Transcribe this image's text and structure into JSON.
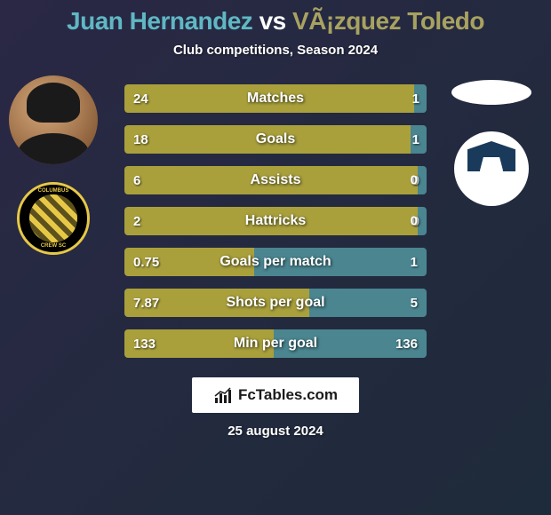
{
  "title": {
    "player1_name": "Juan Hernandez",
    "vs_text": "vs",
    "player2_name": "VÃ¡zquez Toledo",
    "player1_color": "#5fb8c4",
    "vs_color": "#ffffff",
    "player2_color": "#a8a260",
    "fontsize": 28
  },
  "subtitle": "Club competitions, Season 2024",
  "stats": [
    {
      "label": "Matches",
      "left_value": "24",
      "right_value": "1",
      "left_width": 96
    },
    {
      "label": "Goals",
      "left_value": "18",
      "right_value": "1",
      "left_width": 94.7
    },
    {
      "label": "Assists",
      "left_value": "6",
      "right_value": "0",
      "left_width": 100
    },
    {
      "label": "Hattricks",
      "left_value": "2",
      "right_value": "0",
      "left_width": 100
    },
    {
      "label": "Goals per match",
      "left_value": "0.75",
      "right_value": "1",
      "left_width": 42.9
    },
    {
      "label": "Shots per goal",
      "left_value": "7.87",
      "right_value": "5",
      "left_width": 61.1
    },
    {
      "label": "Min per goal",
      "left_value": "133",
      "right_value": "136",
      "left_width": 49.4
    }
  ],
  "bar_colors": {
    "left": "#a9a03c",
    "right": "#4a8590"
  },
  "label_fontsize": 16,
  "value_fontsize": 15,
  "background_gradient": {
    "from": "#2a2845",
    "to": "#1e2b3a"
  },
  "footer": {
    "brand": "FcTables.com",
    "date": "25 august 2024"
  },
  "clubs": {
    "left_name": "Columbus Crew",
    "right_name": "Monterrey"
  }
}
